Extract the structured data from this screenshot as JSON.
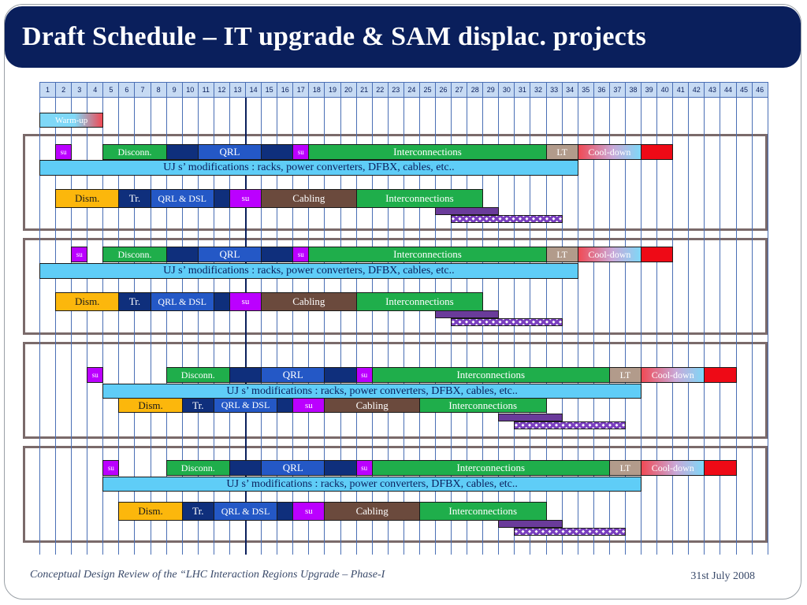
{
  "slide": {
    "title": "Draft Schedule – IT upgrade & SAM displac. projects",
    "footer_left": "Conceptual Design Review of the “LHC Interaction Regions Upgrade – Phase-I",
    "footer_right": "31st July 2008"
  },
  "timeline": {
    "columns": [
      "1",
      "2",
      "3",
      "4",
      "5",
      "6",
      "7",
      "8",
      "9",
      "10",
      "11",
      "12",
      "13",
      "14",
      "15",
      "16",
      "17",
      "18",
      "19",
      "20",
      "21",
      "22",
      "23",
      "24",
      "25",
      "26",
      "27",
      "28",
      "29",
      "30",
      "31",
      "32",
      "33",
      "34",
      "35",
      "36",
      "37",
      "38",
      "39",
      "40",
      "41",
      "42",
      "43",
      "44",
      "45",
      "46"
    ]
  },
  "tasks": [
    {
      "label": "Warm-up",
      "start": 1,
      "span": 4,
      "row": 0,
      "style": "warm",
      "size": 11
    },
    {
      "label": "su",
      "start": 2,
      "span": 1,
      "row": 1,
      "style": "purple",
      "size": 9
    },
    {
      "label": "Disconn.",
      "start": 5,
      "span": 4,
      "row": 1,
      "style": "green",
      "size": 12
    },
    {
      "label": "",
      "start": 9,
      "span": 2,
      "row": 1,
      "style": "navy",
      "size": 12
    },
    {
      "label": "QRL",
      "start": 11,
      "span": 4,
      "row": 1,
      "style": "blue",
      "size": 13
    },
    {
      "label": "",
      "start": 15,
      "span": 2,
      "row": 1,
      "style": "navy",
      "size": 12
    },
    {
      "label": "su",
      "start": 17,
      "span": 1,
      "row": 1,
      "style": "purple",
      "size": 9
    },
    {
      "label": "Interconnections",
      "start": 18,
      "span": 15,
      "row": 1,
      "style": "green",
      "size": 13
    },
    {
      "label": "LT",
      "start": 33,
      "span": 2,
      "row": 1,
      "style": "tan",
      "size": 12
    },
    {
      "label": "Cool-down",
      "start": 35,
      "span": 4,
      "row": 1,
      "style": "cool",
      "size": 12
    },
    {
      "label": "",
      "start": 39,
      "span": 2,
      "row": 1,
      "style": "red",
      "size": 12
    },
    {
      "label": "UJ s’ modifications : racks, power converters, DFBX, cables, etc..",
      "start": 1,
      "span": 34,
      "row": 2,
      "style": "cyan",
      "size": 14
    },
    {
      "label": "Dism.",
      "start": 2,
      "span": 4,
      "row": 3,
      "style": "orange",
      "size": 13
    },
    {
      "label": "Tr.",
      "start": 6,
      "span": 2,
      "row": 3,
      "style": "navy",
      "size": 13
    },
    {
      "label": "QRL & DSL",
      "start": 8,
      "span": 4,
      "row": 3,
      "style": "blue",
      "size": 12
    },
    {
      "label": "",
      "start": 12,
      "span": 1,
      "row": 3,
      "style": "navy",
      "size": 12
    },
    {
      "label": "su",
      "start": 13,
      "span": 2,
      "row": 3,
      "style": "purple",
      "size": 11
    },
    {
      "label": "Cabling",
      "start": 15,
      "span": 6,
      "row": 3,
      "style": "brown",
      "size": 13
    },
    {
      "label": "Interconnections",
      "start": 21,
      "span": 8,
      "row": 3,
      "style": "green",
      "size": 13
    },
    {
      "label": "",
      "start": 26,
      "span": 4,
      "row": 4,
      "style": "violet",
      "size": 12
    },
    {
      "label": "",
      "start": 27,
      "span": 7,
      "row": 5,
      "style": "diamond",
      "size": 12
    },
    {
      "label": "su",
      "start": 3,
      "span": 1,
      "row": 6,
      "style": "purple",
      "size": 9
    },
    {
      "label": "Disconn.",
      "start": 5,
      "span": 4,
      "row": 6,
      "style": "green",
      "size": 12
    },
    {
      "label": "",
      "start": 9,
      "span": 2,
      "row": 6,
      "style": "navy",
      "size": 12
    },
    {
      "label": "QRL",
      "start": 11,
      "span": 4,
      "row": 6,
      "style": "blue",
      "size": 13
    },
    {
      "label": "",
      "start": 15,
      "span": 2,
      "row": 6,
      "style": "navy",
      "size": 12
    },
    {
      "label": "su",
      "start": 17,
      "span": 1,
      "row": 6,
      "style": "purple",
      "size": 9
    },
    {
      "label": "Interconnections",
      "start": 18,
      "span": 15,
      "row": 6,
      "style": "green",
      "size": 13
    },
    {
      "label": "LT",
      "start": 33,
      "span": 2,
      "row": 6,
      "style": "tan",
      "size": 12
    },
    {
      "label": "Cool-down",
      "start": 35,
      "span": 4,
      "row": 6,
      "style": "cool",
      "size": 12
    },
    {
      "label": "",
      "start": 39,
      "span": 2,
      "row": 6,
      "style": "red",
      "size": 12
    },
    {
      "label": "UJ s’ modifications : racks, power converters, DFBX, cables, etc..",
      "start": 1,
      "span": 34,
      "row": 7,
      "style": "cyan",
      "size": 14
    },
    {
      "label": "Dism.",
      "start": 2,
      "span": 4,
      "row": 8,
      "style": "orange",
      "size": 13
    },
    {
      "label": "Tr.",
      "start": 6,
      "span": 2,
      "row": 8,
      "style": "navy",
      "size": 13
    },
    {
      "label": "QRL & DSL",
      "start": 8,
      "span": 4,
      "row": 8,
      "style": "blue",
      "size": 12
    },
    {
      "label": "",
      "start": 12,
      "span": 1,
      "row": 8,
      "style": "navy",
      "size": 12
    },
    {
      "label": "su",
      "start": 13,
      "span": 2,
      "row": 8,
      "style": "purple",
      "size": 11
    },
    {
      "label": "Cabling",
      "start": 15,
      "span": 6,
      "row": 8,
      "style": "brown",
      "size": 13
    },
    {
      "label": "Interconnections",
      "start": 21,
      "span": 8,
      "row": 8,
      "style": "green",
      "size": 13
    },
    {
      "label": "",
      "start": 26,
      "span": 4,
      "row": 9,
      "style": "violet",
      "size": 12
    },
    {
      "label": "",
      "start": 27,
      "span": 7,
      "row": 10,
      "style": "diamond",
      "size": 12
    },
    {
      "label": "su",
      "start": 4,
      "span": 1,
      "row": 11,
      "style": "purple",
      "size": 9
    },
    {
      "label": "Disconn.",
      "start": 9,
      "span": 4,
      "row": 11,
      "style": "green",
      "size": 12
    },
    {
      "label": "",
      "start": 13,
      "span": 2,
      "row": 11,
      "style": "navy",
      "size": 12
    },
    {
      "label": "QRL",
      "start": 15,
      "span": 4,
      "row": 11,
      "style": "blue",
      "size": 13
    },
    {
      "label": "",
      "start": 19,
      "span": 2,
      "row": 11,
      "style": "navy",
      "size": 12
    },
    {
      "label": "su",
      "start": 21,
      "span": 1,
      "row": 11,
      "style": "purple",
      "size": 9
    },
    {
      "label": "Interconnections",
      "start": 22,
      "span": 15,
      "row": 11,
      "style": "green",
      "size": 13
    },
    {
      "label": "LT",
      "start": 37,
      "span": 2,
      "row": 11,
      "style": "tan",
      "size": 12
    },
    {
      "label": "Cool-down",
      "start": 39,
      "span": 4,
      "row": 11,
      "style": "cool",
      "size": 12
    },
    {
      "label": "",
      "start": 43,
      "span": 2,
      "row": 11,
      "style": "red",
      "size": 12
    },
    {
      "label": "UJ s’ modifications : racks, power converters, DFBX, cables, etc..",
      "start": 5,
      "span": 34,
      "row": 12,
      "style": "cyan",
      "size": 14
    },
    {
      "label": "Dism.",
      "start": 6,
      "span": 4,
      "row": 13,
      "style": "orange",
      "size": 13
    },
    {
      "label": "Tr.",
      "start": 10,
      "span": 2,
      "row": 13,
      "style": "navy",
      "size": 13
    },
    {
      "label": "QRL & DSL",
      "start": 12,
      "span": 4,
      "row": 13,
      "style": "blue",
      "size": 12
    },
    {
      "label": "",
      "start": 16,
      "span": 1,
      "row": 13,
      "style": "navy",
      "size": 12
    },
    {
      "label": "su",
      "start": 17,
      "span": 2,
      "row": 13,
      "style": "purple",
      "size": 11
    },
    {
      "label": "Cabling",
      "start": 19,
      "span": 6,
      "row": 13,
      "style": "brown",
      "size": 13
    },
    {
      "label": "Interconnections",
      "start": 25,
      "span": 8,
      "row": 13,
      "style": "green",
      "size": 13
    },
    {
      "label": "",
      "start": 30,
      "span": 4,
      "row": 14,
      "style": "violet",
      "size": 12
    },
    {
      "label": "",
      "start": 31,
      "span": 7,
      "row": 15,
      "style": "diamond",
      "size": 12
    },
    {
      "label": "su",
      "start": 5,
      "span": 1,
      "row": 16,
      "style": "purple",
      "size": 9
    },
    {
      "label": "Disconn.",
      "start": 9,
      "span": 4,
      "row": 16,
      "style": "green",
      "size": 12
    },
    {
      "label": "",
      "start": 13,
      "span": 2,
      "row": 16,
      "style": "navy",
      "size": 12
    },
    {
      "label": "QRL",
      "start": 15,
      "span": 4,
      "row": 16,
      "style": "blue",
      "size": 13
    },
    {
      "label": "",
      "start": 19,
      "span": 2,
      "row": 16,
      "style": "navy",
      "size": 12
    },
    {
      "label": "su",
      "start": 21,
      "span": 1,
      "row": 16,
      "style": "purple",
      "size": 9
    },
    {
      "label": "Interconnections",
      "start": 22,
      "span": 15,
      "row": 16,
      "style": "green",
      "size": 13
    },
    {
      "label": "LT",
      "start": 37,
      "span": 2,
      "row": 16,
      "style": "tan",
      "size": 12
    },
    {
      "label": "Cool-down",
      "start": 39,
      "span": 4,
      "row": 16,
      "style": "cool",
      "size": 12
    },
    {
      "label": "",
      "start": 43,
      "span": 2,
      "row": 16,
      "style": "red",
      "size": 12
    },
    {
      "label": "UJ s’ modifications : racks, power converters, DFBX, cables, etc..",
      "start": 5,
      "span": 34,
      "row": 17,
      "style": "cyan",
      "size": 14
    },
    {
      "label": "Dism.",
      "start": 6,
      "span": 4,
      "row": 18,
      "style": "orange",
      "size": 13
    },
    {
      "label": "Tr.",
      "start": 10,
      "span": 2,
      "row": 18,
      "style": "navy",
      "size": 13
    },
    {
      "label": "QRL & DSL",
      "start": 12,
      "span": 4,
      "row": 18,
      "style": "blue",
      "size": 12
    },
    {
      "label": "",
      "start": 16,
      "span": 1,
      "row": 18,
      "style": "navy",
      "size": 12
    },
    {
      "label": "su",
      "start": 17,
      "span": 2,
      "row": 18,
      "style": "purple",
      "size": 11
    },
    {
      "label": "Cabling",
      "start": 19,
      "span": 6,
      "row": 18,
      "style": "brown",
      "size": 13
    },
    {
      "label": "Interconnections",
      "start": 25,
      "span": 8,
      "row": 18,
      "style": "green",
      "size": 13
    },
    {
      "label": "",
      "start": 30,
      "span": 4,
      "row": 19,
      "style": "violet",
      "size": 12
    },
    {
      "label": "",
      "start": 31,
      "span": 7,
      "row": 20,
      "style": "diamond",
      "size": 12
    }
  ]
}
